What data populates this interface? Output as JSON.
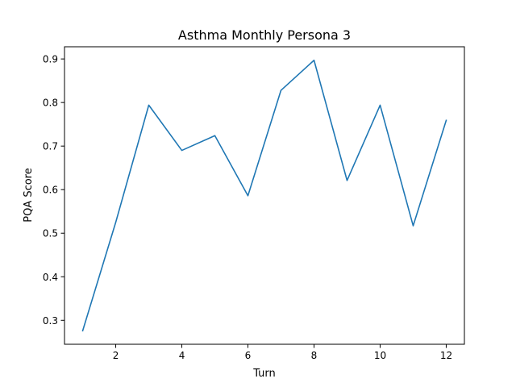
{
  "chart_data": {
    "type": "line",
    "title": "Asthma Monthly Persona 3",
    "xlabel": "Turn",
    "ylabel": "PQA Score",
    "x": [
      1,
      2,
      3,
      4,
      5,
      6,
      7,
      8,
      9,
      10,
      11,
      12
    ],
    "series": [
      {
        "values": [
          0.276,
          0.525,
          0.794,
          0.69,
          0.724,
          0.586,
          0.828,
          0.897,
          0.621,
          0.794,
          0.517,
          0.759
        ],
        "color": "#1f77b4"
      }
    ],
    "xlim": [
      0.45,
      12.55
    ],
    "ylim": [
      0.245,
      0.928
    ],
    "xticks": [
      2,
      4,
      6,
      8,
      10,
      12
    ],
    "yticks": [
      0.3,
      0.4,
      0.5,
      0.6,
      0.7,
      0.8,
      0.9
    ],
    "xtick_labels": [
      "2",
      "4",
      "6",
      "8",
      "10",
      "12"
    ],
    "ytick_labels": [
      "0.3",
      "0.4",
      "0.5",
      "0.6",
      "0.7",
      "0.8",
      "0.9"
    ],
    "grid": false,
    "legend": "none"
  }
}
